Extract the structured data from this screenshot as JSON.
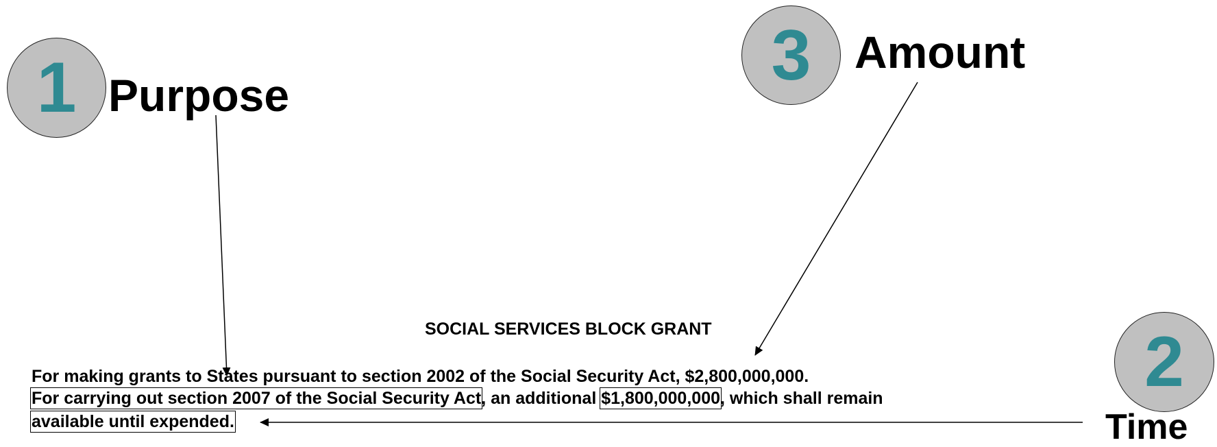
{
  "callouts": [
    {
      "number": "1",
      "label": "Purpose"
    },
    {
      "number": "2",
      "label": "Time"
    },
    {
      "number": "3",
      "label": "Amount"
    }
  ],
  "document": {
    "title": "SOCIAL SERVICES BLOCK GRANT",
    "line1": "For making grants to States pursuant to section 2002 of the Social Security Act, $2,800,000,000.",
    "line2_boxed_purpose": "For carrying out section 2007 of the Social Security Act",
    "line2_mid": ", an additional ",
    "line2_boxed_amount": "$1,800,000,000",
    "line2_end": ", which shall remain",
    "line3_boxed_time": "available until expended."
  },
  "colors": {
    "circle_fill": "#c0c0c0",
    "number_color": "#2f8a92"
  }
}
